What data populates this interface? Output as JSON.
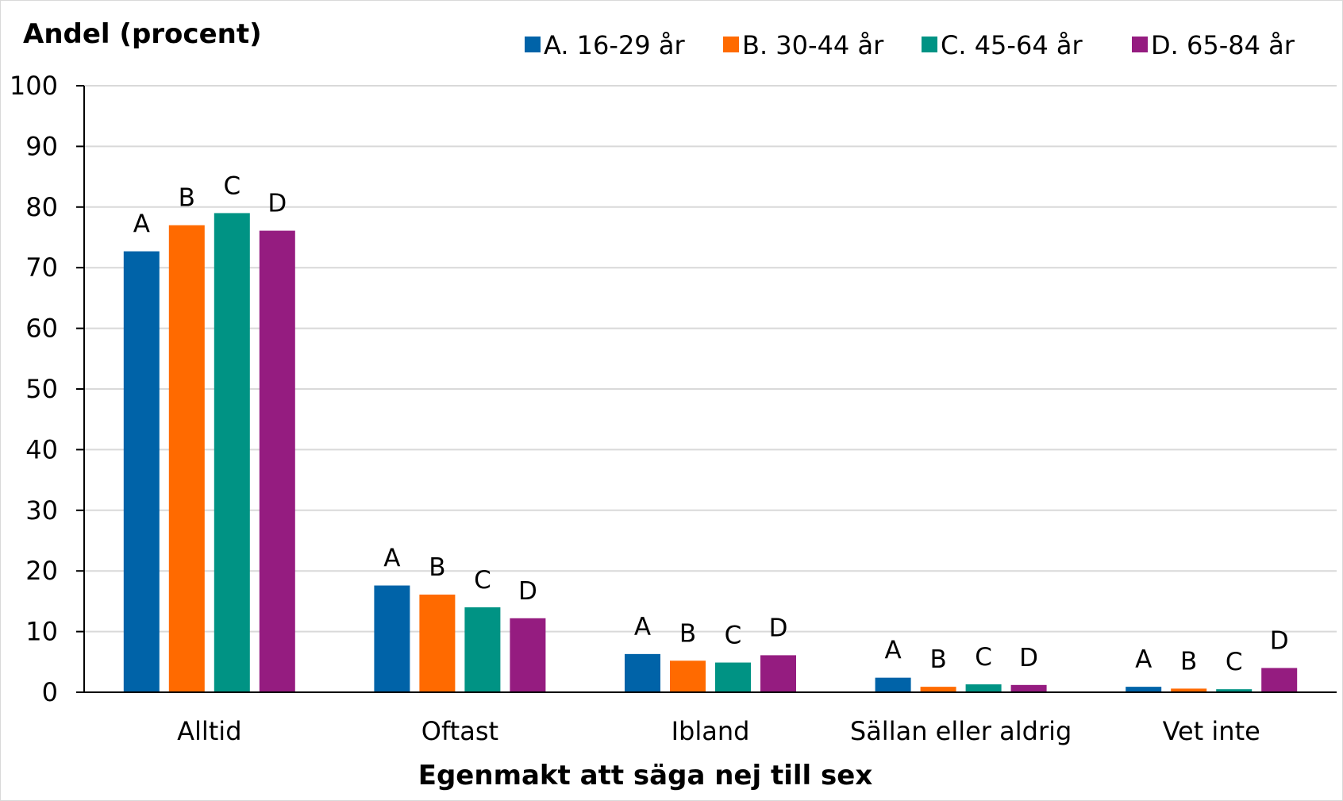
{
  "chart_data": {
    "type": "bar",
    "title": "",
    "ylabel": "Andel (procent)",
    "xlabel": "Egenmakt att säga nej till sex",
    "ylim": [
      0,
      100
    ],
    "yticks": [
      0,
      10,
      20,
      30,
      40,
      50,
      60,
      70,
      80,
      90,
      100
    ],
    "grid": true,
    "legend_position": "top-right",
    "categories": [
      "Alltid",
      "Oftast",
      "Ibland",
      "Sällan eller aldrig",
      "Vet inte"
    ],
    "series": [
      {
        "name": "A. 16-29 år",
        "short": "A",
        "color": "#0063a8",
        "values": [
          72.7,
          17.6,
          6.3,
          2.4,
          0.9
        ]
      },
      {
        "name": "B. 30-44 år",
        "short": "B",
        "color": "#ff6a00",
        "values": [
          77.0,
          16.1,
          5.2,
          0.9,
          0.6
        ]
      },
      {
        "name": "C. 45-64 år",
        "short": "C",
        "color": "#009384",
        "values": [
          79.0,
          14.0,
          4.9,
          1.3,
          0.5
        ]
      },
      {
        "name": "D. 65-84 år",
        "short": "D",
        "color": "#951c80",
        "values": [
          76.1,
          12.2,
          6.1,
          1.2,
          4.0
        ]
      }
    ]
  }
}
